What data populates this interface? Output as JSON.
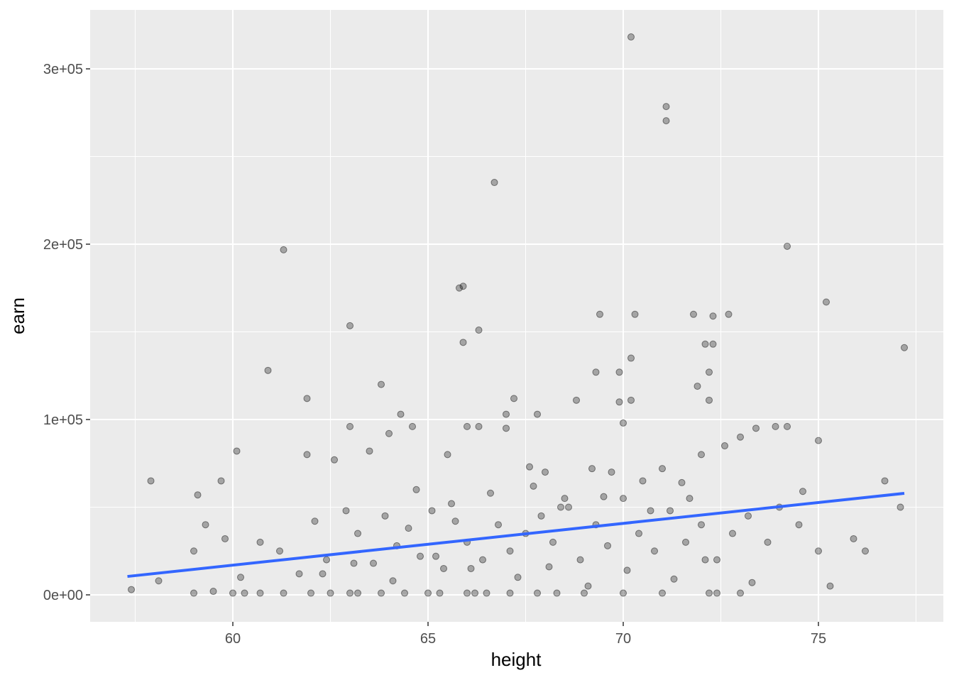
{
  "chart_data": {
    "type": "scatter",
    "x_label": "height",
    "y_label": "earn",
    "xlim": [
      56.345,
      78.2
    ],
    "ylim": [
      -15385,
      333600
    ],
    "xticks": [
      60,
      65,
      70,
      75
    ],
    "yticks": [
      {
        "value": 0,
        "label": "0e+00"
      },
      {
        "value": 100000,
        "label": "1e+05"
      },
      {
        "value": 200000,
        "label": "2e+05"
      },
      {
        "value": 300000,
        "label": "3e+05"
      }
    ],
    "x_minor_ticks": [
      57.5,
      62.5,
      67.5,
      72.5,
      77.5
    ],
    "y_minor_ticks": [
      50000,
      150000,
      250000
    ],
    "grid": true,
    "point_color": "#000000",
    "x": [
      70.2,
      71.1,
      71.1,
      66.7,
      61.3,
      74.2,
      65.8,
      65.9,
      66.3,
      65.9,
      63.0,
      75.2,
      77.2,
      69.4,
      70.3,
      71.8,
      72.7,
      72.3,
      72.1,
      72.3,
      70.2,
      60.9,
      69.3,
      69.9,
      72.2,
      63.8,
      71.9,
      61.9,
      67.2,
      68.8,
      70.2,
      69.9,
      72.2,
      64.3,
      67.0,
      67.8,
      70.0,
      57.9,
      60.1,
      59.1,
      59.7,
      61.9,
      62.6,
      63.0,
      63.5,
      64.0,
      64.6,
      65.5,
      66.0,
      66.3,
      67.0,
      67.6,
      68.0,
      68.5,
      69.2,
      69.7,
      70.5,
      71.0,
      71.5,
      72.0,
      72.6,
      73.0,
      73.4,
      73.9,
      74.2,
      74.6,
      75.0,
      75.9,
      76.2,
      76.7,
      77.1,
      58.1,
      59.0,
      59.3,
      59.8,
      60.2,
      60.7,
      61.2,
      61.7,
      62.1,
      62.4,
      62.9,
      63.2,
      63.6,
      63.9,
      64.2,
      64.5,
      64.8,
      65.1,
      65.4,
      65.7,
      66.0,
      66.4,
      66.8,
      67.1,
      67.5,
      67.9,
      68.2,
      68.6,
      68.9,
      69.3,
      69.6,
      70.0,
      70.4,
      70.8,
      71.2,
      71.6,
      72.0,
      72.4,
      72.8,
      73.2,
      73.7,
      74.0,
      74.5,
      75.0,
      75.3,
      57.4,
      59.0,
      59.5,
      60.0,
      60.3,
      60.7,
      61.3,
      62.0,
      62.5,
      63.0,
      63.2,
      63.8,
      64.4,
      65.0,
      65.3,
      66.0,
      66.2,
      66.5,
      67.1,
      67.8,
      68.3,
      69.0,
      70.0,
      71.0,
      72.2,
      72.4,
      73.0,
      62.3,
      63.1,
      64.1,
      65.2,
      66.1,
      67.3,
      68.1,
      69.1,
      70.1,
      71.3,
      72.1,
      73.3,
      64.7,
      65.6,
      66.6,
      67.7,
      68.4,
      69.5,
      70.7,
      71.7
    ],
    "y": [
      318200,
      278500,
      270400,
      235200,
      196800,
      198800,
      175000,
      176000,
      151000,
      144000,
      153500,
      167000,
      141000,
      160000,
      160000,
      160000,
      160000,
      159000,
      143000,
      143000,
      135000,
      128000,
      127000,
      127000,
      127000,
      120000,
      119000,
      112000,
      112000,
      111000,
      111000,
      110000,
      111000,
      103000,
      103000,
      103000,
      98000,
      65000,
      82000,
      57000,
      65000,
      80000,
      77000,
      96000,
      82000,
      92000,
      96000,
      80000,
      96000,
      96000,
      95000,
      73000,
      70000,
      55000,
      72000,
      70000,
      65000,
      72000,
      64000,
      80000,
      85000,
      90000,
      95000,
      96000,
      96000,
      59000,
      88000,
      32000,
      25000,
      65000,
      50000,
      8000,
      25000,
      40000,
      32000,
      10000,
      30000,
      25000,
      12000,
      42000,
      20000,
      48000,
      35000,
      18000,
      45000,
      28000,
      38000,
      22000,
      48000,
      15000,
      42000,
      30000,
      20000,
      40000,
      25000,
      35000,
      45000,
      30000,
      50000,
      20000,
      40000,
      28000,
      55000,
      35000,
      25000,
      48000,
      30000,
      40000,
      20000,
      35000,
      45000,
      30000,
      50000,
      40000,
      25000,
      5000,
      3000,
      1000,
      2000,
      1000,
      1000,
      1000,
      1000,
      1000,
      1000,
      1000,
      1000,
      1000,
      1000,
      1000,
      1000,
      1000,
      1000,
      1000,
      1000,
      1000,
      1000,
      1000,
      1000,
      1000,
      1000,
      1000,
      1000,
      12000,
      18000,
      8000,
      22000,
      15000,
      10000,
      16000,
      5000,
      14000,
      9000,
      20000,
      7000,
      60000,
      52000,
      58000,
      62000,
      50000,
      56000,
      48000,
      55000
    ],
    "trend_line": {
      "x": [
        57.3,
        77.2
      ],
      "y": [
        10500,
        57900
      ],
      "color": "#3366ff"
    }
  }
}
